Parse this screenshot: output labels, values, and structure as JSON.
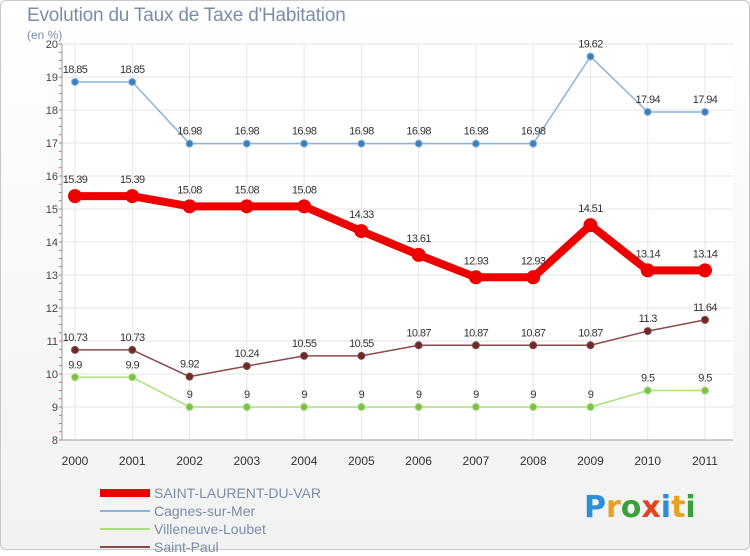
{
  "title": "Evolution du Taux de Taxe d'Habitation",
  "subtitle": "(en %)",
  "logo": {
    "letters": [
      "P",
      "r",
      "o",
      "x",
      "i",
      "t",
      "i"
    ],
    "colors": [
      "#2f8fd6",
      "#e8a020",
      "#3aa03a",
      "#e84020",
      "#2f8fd6",
      "#e8a020",
      "#3aa03a"
    ]
  },
  "chart_data": {
    "type": "line",
    "title": "Evolution du Taux de Taxe d'Habitation",
    "ylabel": "(en %)",
    "xlabel": "",
    "categories": [
      "2000",
      "2001",
      "2002",
      "2003",
      "2004",
      "2005",
      "2006",
      "2007",
      "2008",
      "2009",
      "2010",
      "2011"
    ],
    "yticks": [
      "8",
      "9",
      "10",
      "11",
      "12",
      "13",
      "14",
      "15",
      "16",
      "17",
      "18",
      "19",
      "20"
    ],
    "ylim": [
      8,
      20
    ],
    "grid": true,
    "legend_position": "bottom-left",
    "series": [
      {
        "name": "SAINT-LAURENT-DU-VAR",
        "color": "#ee0000",
        "emphasis": true,
        "values": [
          15.39,
          15.39,
          15.08,
          15.08,
          15.08,
          14.33,
          13.61,
          12.93,
          12.93,
          14.51,
          13.14,
          13.14
        ],
        "labels": [
          "15.39",
          "15.39",
          "15.08",
          "15.08",
          "15.08",
          "14.33",
          "13.61",
          "12.93",
          "12.93",
          "14.51",
          "13.14",
          "13.14"
        ]
      },
      {
        "name": "Cagnes-sur-Mer",
        "color": "#8ab4d8",
        "marker": "#3a7fc0",
        "values": [
          18.85,
          18.85,
          16.98,
          16.98,
          16.98,
          16.98,
          16.98,
          16.98,
          16.98,
          19.62,
          17.94,
          17.94
        ],
        "labels": [
          "18.85",
          "18.85",
          "16.98",
          "16.98",
          "16.98",
          "16.98",
          "16.98",
          "16.98",
          "16.98",
          "19.62",
          "17.94",
          "17.94"
        ]
      },
      {
        "name": "Villeneuve-Loubet",
        "color": "#a8e07a",
        "marker": "#7cc04a",
        "values": [
          9.9,
          9.9,
          9,
          9,
          9,
          9,
          9,
          9,
          9,
          9,
          9.5,
          9.5
        ],
        "labels": [
          "9.9",
          "9.9",
          "9",
          "9",
          "9",
          "9",
          "9",
          "9",
          "9",
          "9",
          "9.5",
          "9.5"
        ]
      },
      {
        "name": "Saint-Paul",
        "color": "#8a4a4a",
        "marker": "#6a2a2a",
        "values": [
          10.73,
          10.73,
          9.92,
          10.24,
          10.55,
          10.55,
          10.87,
          10.87,
          10.87,
          10.87,
          11.3,
          11.64
        ],
        "labels": [
          "10.73",
          "10.73",
          "9.92",
          "10.24",
          "10.55",
          "10.55",
          "10.87",
          "10.87",
          "10.87",
          "10.87",
          "11.3",
          "11.64"
        ]
      }
    ]
  }
}
